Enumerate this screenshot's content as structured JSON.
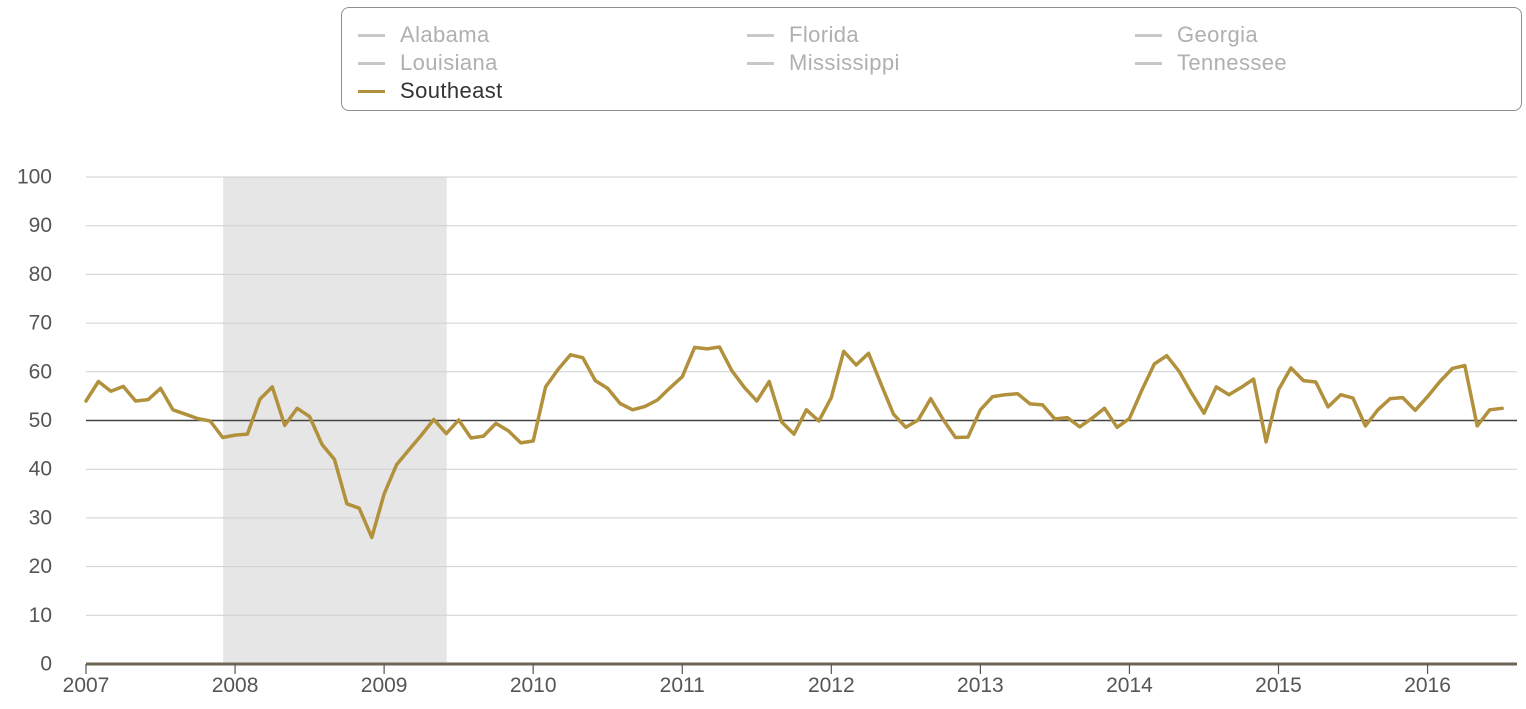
{
  "legend": {
    "items": [
      {
        "label": "Alabama",
        "color": "#c8c8c8",
        "active": false
      },
      {
        "label": "Florida",
        "color": "#c8c8c8",
        "active": false
      },
      {
        "label": "Georgia",
        "color": "#c8c8c8",
        "active": false
      },
      {
        "label": "Louisiana",
        "color": "#c8c8c8",
        "active": false
      },
      {
        "label": "Mississippi",
        "color": "#c8c8c8",
        "active": false
      },
      {
        "label": "Tennessee",
        "color": "#c8c8c8",
        "active": false
      },
      {
        "label": "Southeast",
        "color": "#b2913d",
        "active": true
      }
    ]
  },
  "colors": {
    "series": "#b2913d",
    "inactive": "#c8c8c8",
    "shade": "#e6e6e6",
    "grid": "#cfcfcf",
    "reference": "#444444",
    "axis_text": "#555555"
  },
  "chart_data": {
    "type": "line",
    "title": "",
    "xlabel": "",
    "ylabel": "",
    "ylim": [
      0,
      100
    ],
    "xlim": [
      2007.0,
      2016.6
    ],
    "grid": true,
    "legend_position": "top-right",
    "y_ticks": [
      0,
      10,
      20,
      30,
      40,
      50,
      60,
      70,
      80,
      90,
      100
    ],
    "x_ticks": [
      2007,
      2008,
      2009,
      2010,
      2011,
      2012,
      2013,
      2014,
      2015,
      2016
    ],
    "reference_line": 50,
    "shaded_ranges": [
      [
        2007.92,
        2009.42
      ]
    ],
    "series": [
      {
        "name": "Southeast",
        "x": [
          2007.0,
          2007.083,
          2007.167,
          2007.25,
          2007.333,
          2007.417,
          2007.5,
          2007.583,
          2007.667,
          2007.75,
          2007.833,
          2007.917,
          2008.0,
          2008.083,
          2008.167,
          2008.25,
          2008.333,
          2008.417,
          2008.5,
          2008.583,
          2008.667,
          2008.75,
          2008.833,
          2008.917,
          2009.0,
          2009.083,
          2009.167,
          2009.25,
          2009.333,
          2009.417,
          2009.5,
          2009.583,
          2009.667,
          2009.75,
          2009.833,
          2009.917,
          2010.0,
          2010.083,
          2010.167,
          2010.25,
          2010.333,
          2010.417,
          2010.5,
          2010.583,
          2010.667,
          2010.75,
          2010.833,
          2010.917,
          2011.0,
          2011.083,
          2011.167,
          2011.25,
          2011.333,
          2011.417,
          2011.5,
          2011.583,
          2011.667,
          2011.75,
          2011.833,
          2011.917,
          2012.0,
          2012.083,
          2012.167,
          2012.25,
          2012.333,
          2012.417,
          2012.5,
          2012.583,
          2012.667,
          2012.75,
          2012.833,
          2012.917,
          2013.0,
          2013.083,
          2013.167,
          2013.25,
          2013.333,
          2013.417,
          2013.5,
          2013.583,
          2013.667,
          2013.75,
          2013.833,
          2013.917,
          2014.0,
          2014.083,
          2014.167,
          2014.25,
          2014.333,
          2014.417,
          2014.5,
          2014.583,
          2014.667,
          2014.75,
          2014.833,
          2014.917,
          2015.0,
          2015.083,
          2015.167,
          2015.25,
          2015.333,
          2015.417,
          2015.5,
          2015.583,
          2015.667,
          2015.75,
          2015.833,
          2015.917,
          2016.0,
          2016.083,
          2016.167,
          2016.25,
          2016.333,
          2016.417,
          2016.5
        ],
        "values": [
          54.0,
          58.0,
          56.0,
          57.0,
          54.0,
          54.3,
          56.6,
          52.2,
          51.3,
          50.4,
          49.9,
          46.5,
          47.0,
          47.2,
          54.4,
          56.9,
          49.0,
          52.5,
          50.8,
          45.1,
          42.0,
          32.9,
          32.0,
          26.0,
          34.9,
          40.9,
          44.0,
          47.0,
          50.2,
          47.3,
          50.1,
          46.4,
          46.8,
          49.4,
          47.9,
          45.4,
          45.8,
          56.9,
          60.5,
          63.5,
          62.9,
          58.2,
          56.6,
          53.5,
          52.2,
          52.9,
          54.2,
          56.7,
          59.0,
          65.0,
          64.7,
          65.1,
          60.2,
          56.8,
          54.0,
          58.0,
          49.7,
          47.2,
          52.2,
          49.9,
          54.7,
          64.2,
          61.4,
          63.8,
          57.5,
          51.3,
          48.6,
          50.1,
          54.5,
          50.2,
          46.5,
          46.6,
          52.2,
          54.9,
          55.3,
          55.5,
          53.4,
          53.2,
          50.3,
          50.6,
          48.7,
          50.5,
          52.5,
          48.6,
          50.4,
          56.2,
          61.6,
          63.3,
          60.1,
          55.6,
          51.5,
          56.9,
          55.3,
          56.8,
          58.5,
          45.6,
          56.3,
          60.8,
          58.2,
          57.9,
          52.8,
          55.3,
          54.6,
          48.9,
          52.2,
          54.5,
          54.7,
          52.1,
          54.9,
          58.0,
          60.7,
          61.3,
          48.9,
          52.2,
          52.5
        ]
      }
    ]
  }
}
